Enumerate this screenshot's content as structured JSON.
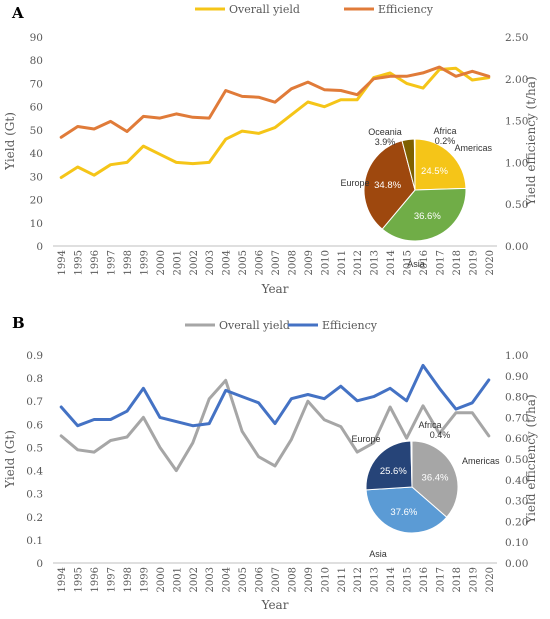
{
  "colors": {
    "overall_a": "#F5C518",
    "efficiency_a": "#E07B39",
    "overall_b": "#A6A6A6",
    "efficiency_b": "#4472C4",
    "axis": "#BFBFBF",
    "grid": "#E6E6E6",
    "text": "#595959"
  },
  "chart_data": [
    {
      "panel_label": "A",
      "type": "line",
      "x": [
        1994,
        1995,
        1996,
        1997,
        1998,
        1999,
        2000,
        2001,
        2002,
        2003,
        2004,
        2005,
        2006,
        2007,
        2008,
        2009,
        2010,
        2011,
        2012,
        2013,
        2014,
        2015,
        2016,
        2017,
        2018,
        2019,
        2020
      ],
      "series": [
        {
          "name": "Overall yield",
          "axis": "left",
          "color": "#F5C518",
          "values": [
            29.5,
            34,
            30.5,
            35,
            36,
            43,
            39.5,
            36,
            35.5,
            36,
            46,
            49.5,
            48.5,
            51,
            56.5,
            62,
            60,
            63,
            63,
            72.5,
            74.5,
            70,
            68,
            76,
            76.5,
            71.5,
            72.5
          ]
        },
        {
          "name": "Efficiency",
          "axis": "right",
          "color": "#E07B39",
          "values": [
            1.3,
            1.43,
            1.4,
            1.49,
            1.37,
            1.55,
            1.53,
            1.58,
            1.54,
            1.53,
            1.86,
            1.79,
            1.78,
            1.72,
            1.88,
            1.96,
            1.87,
            1.86,
            1.81,
            2.0,
            2.03,
            2.03,
            2.07,
            2.14,
            2.03,
            2.09,
            2.03
          ]
        }
      ],
      "xlabel": "Year",
      "ylabel": "Yield (Gt)",
      "ylabel_right": "Yield efficiency (t/ha)",
      "ylim": [
        0,
        90
      ],
      "yticks": [
        "0",
        "10",
        "20",
        "30",
        "40",
        "50",
        "60",
        "70",
        "80",
        "90"
      ],
      "ylim_right": [
        0,
        2.5
      ],
      "yticks_right": [
        "0.00",
        "0.50",
        "1.00",
        "1.50",
        "2.00",
        "2.50"
      ],
      "legend_position": "top-center",
      "grid": false,
      "pie": {
        "labels": [
          "Americas",
          "Asia",
          "Europe",
          "Oceania",
          "Africa"
        ],
        "values": [
          24.5,
          36.6,
          34.8,
          3.9,
          0.2
        ],
        "value_labels": [
          "24.5%",
          "36.6%",
          "34.8%",
          "3.9%",
          "0.2%"
        ],
        "colors": [
          "#F5C518",
          "#70AD47",
          "#9E480E",
          "#7F6000",
          "#C9C9C9"
        ]
      }
    },
    {
      "panel_label": "B",
      "type": "line",
      "x": [
        1994,
        1995,
        1996,
        1997,
        1998,
        1999,
        2000,
        2001,
        2002,
        2003,
        2004,
        2005,
        2006,
        2007,
        2008,
        2009,
        2010,
        2011,
        2012,
        2013,
        2014,
        2015,
        2016,
        2017,
        2018,
        2019,
        2020
      ],
      "series": [
        {
          "name": "Overall yield",
          "axis": "left",
          "color": "#A6A6A6",
          "values": [
            0.55,
            0.49,
            0.48,
            0.53,
            0.545,
            0.63,
            0.5,
            0.4,
            0.52,
            0.71,
            0.79,
            0.57,
            0.46,
            0.42,
            0.535,
            0.7,
            0.62,
            0.59,
            0.48,
            0.52,
            0.675,
            0.54,
            0.68,
            0.56,
            0.65,
            0.65,
            0.55
          ]
        },
        {
          "name": "Efficiency",
          "axis": "right",
          "color": "#4472C4",
          "values": [
            0.75,
            0.66,
            0.69,
            0.69,
            0.73,
            0.84,
            0.7,
            0.68,
            0.66,
            0.67,
            0.83,
            0.8,
            0.77,
            0.67,
            0.79,
            0.81,
            0.79,
            0.85,
            0.78,
            0.8,
            0.84,
            0.78,
            0.95,
            0.84,
            0.74,
            0.77,
            0.88
          ]
        }
      ],
      "xlabel": "Year",
      "ylabel": "Yield (Gt)",
      "ylabel_right": "Yield efficiency (t/ha)",
      "ylim": [
        0,
        0.9
      ],
      "yticks": [
        "0",
        "0.1",
        "0.2",
        "0.3",
        "0.4",
        "0.5",
        "0.6",
        "0.7",
        "0.8",
        "0.9"
      ],
      "ylim_right": [
        0,
        1.0
      ],
      "yticks_right": [
        "0.00",
        "0.10",
        "0.20",
        "0.30",
        "0.40",
        "0.50",
        "0.60",
        "0.70",
        "0.80",
        "0.90",
        "1.00"
      ],
      "legend_position": "top-center",
      "grid": false,
      "pie": {
        "labels": [
          "Americas",
          "Asia",
          "Europe",
          "Africa"
        ],
        "values": [
          36.4,
          37.6,
          25.6,
          0.4
        ],
        "value_labels": [
          "36.4%",
          "37.6%",
          "25.6%",
          "0.4%"
        ],
        "colors": [
          "#A6A6A6",
          "#5B9BD5",
          "#264478",
          "#D9D9D9"
        ]
      }
    }
  ]
}
